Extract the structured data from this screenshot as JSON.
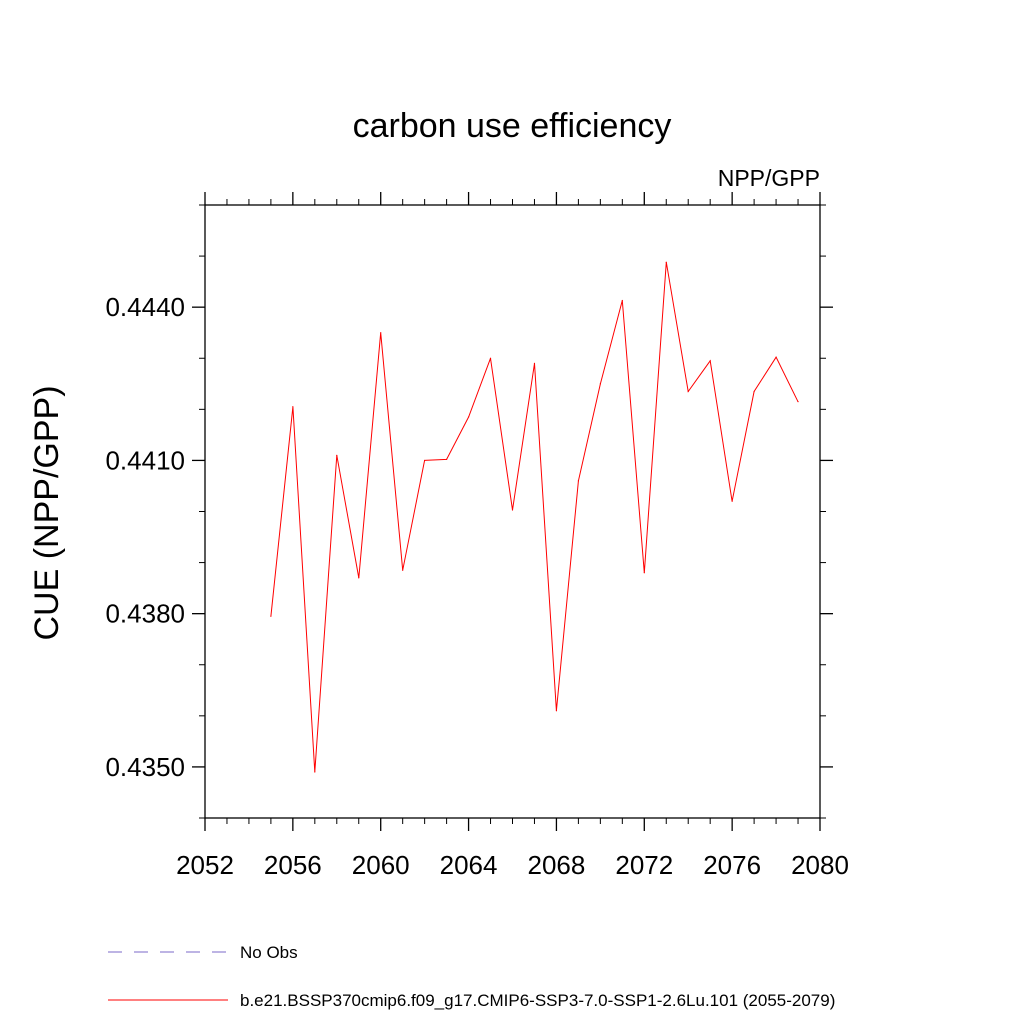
{
  "chart_data": {
    "type": "line",
    "title": "carbon use efficiency",
    "subtitle": "NPP/GPP",
    "xlabel": "",
    "ylabel": "CUE  (NPP/GPP)",
    "xlim": [
      2052,
      2080
    ],
    "ylim": [
      0.434,
      0.446
    ],
    "x_ticks": [
      "2052",
      "2056",
      "2060",
      "2064",
      "2068",
      "2072",
      "2076",
      "2080"
    ],
    "y_ticks": [
      "0.4350",
      "0.4380",
      "0.4410",
      "0.4440"
    ],
    "grid": false,
    "series": [
      {
        "name": "b.e21.BSSP370cmip6.f09_g17.CMIP6-SSP3-7.0-SSP1-2.6Lu.101 (2055-2079)",
        "color": "#ff0000",
        "style": "solid",
        "x": [
          2055,
          2056,
          2057,
          2058,
          2059,
          2060,
          2061,
          2062,
          2063,
          2064,
          2065,
          2066,
          2067,
          2068,
          2069,
          2070,
          2071,
          2072,
          2073,
          2074,
          2075,
          2076,
          2077,
          2078,
          2079
        ],
        "y": [
          0.43795,
          0.44205,
          0.4349,
          0.4411,
          0.4387,
          0.4435,
          0.43885,
          0.441,
          0.44102,
          0.44185,
          0.443,
          0.44003,
          0.4429,
          0.4361,
          0.4406,
          0.4425,
          0.44413,
          0.4388,
          0.44488,
          0.44235,
          0.44295,
          0.4402,
          0.44235,
          0.44302,
          0.44215
        ]
      }
    ]
  },
  "legend": {
    "entries": [
      {
        "label": "No Obs",
        "color": "#7b68c8",
        "style": "dashed"
      },
      {
        "label": "b.e21.BSSP370cmip6.f09_g17.CMIP6-SSP3-7.0-SSP1-2.6Lu.101 (2055-2079)",
        "color": "#ff0000",
        "style": "solid"
      }
    ]
  }
}
